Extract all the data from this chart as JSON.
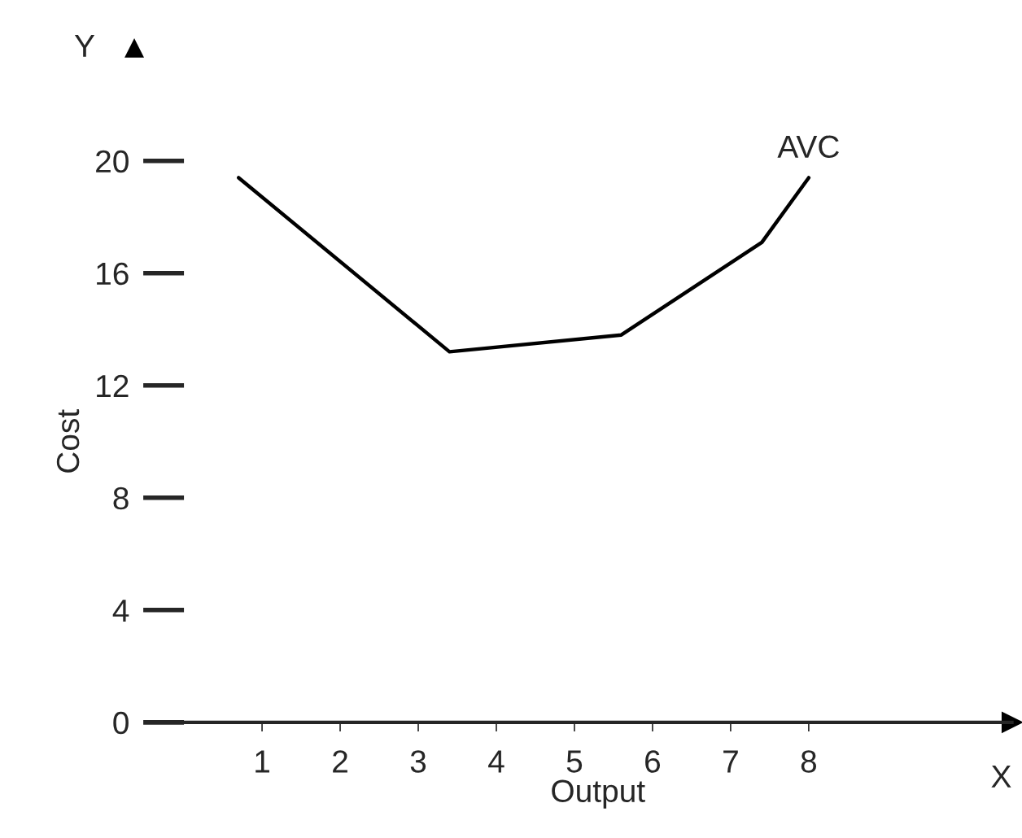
{
  "chart_data": {
    "type": "line",
    "xlabel": "Output",
    "ylabel": "Cost",
    "x": [
      0.7,
      3.4,
      5.6,
      7.4,
      8.0
    ],
    "series": [
      {
        "name": "AVC",
        "color": "#000000",
        "values": [
          19.4,
          13.2,
          13.8,
          17.1,
          19.4
        ]
      }
    ],
    "xlim": [
      0,
      10.6
    ],
    "ylim": [
      0,
      20
    ],
    "xticks": [
      1,
      2,
      3,
      4,
      5,
      6,
      7,
      8
    ],
    "yticks": [
      0,
      4,
      8,
      12,
      16,
      20
    ],
    "annotations": [
      "X",
      "Y"
    ],
    "grid": false,
    "marker": "none",
    "line_style": "solid"
  }
}
